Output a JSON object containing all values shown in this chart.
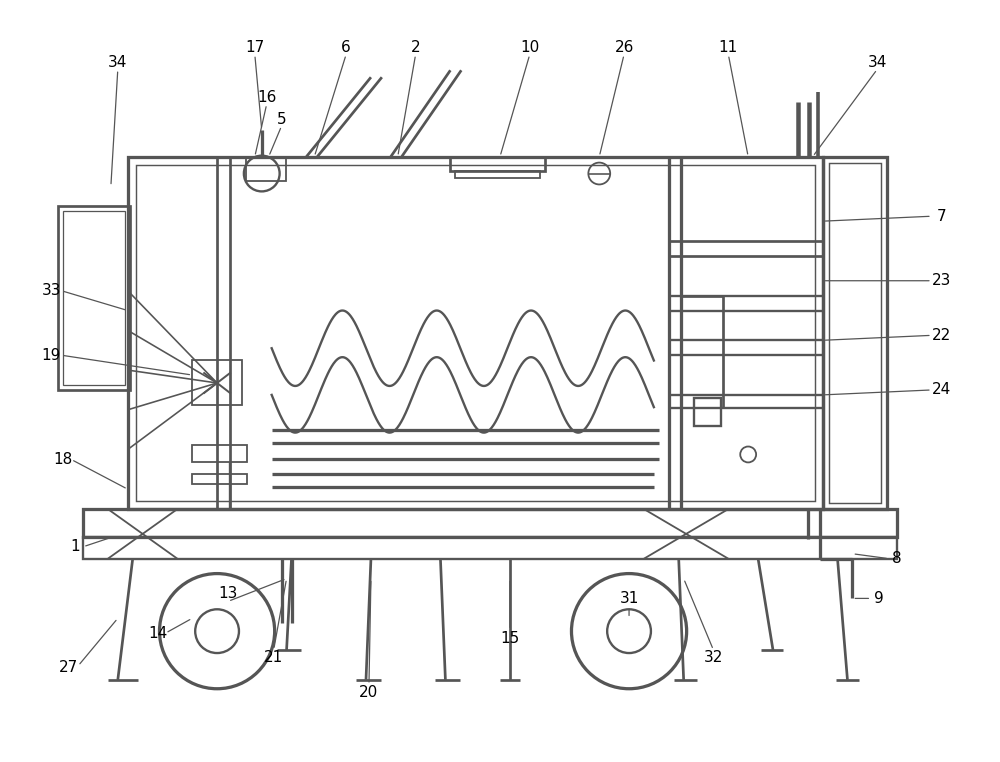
{
  "bg_color": "#ffffff",
  "line_color": "#555555",
  "lw": 1.3,
  "fig_width": 10.0,
  "fig_height": 7.62,
  "dpi": 100
}
